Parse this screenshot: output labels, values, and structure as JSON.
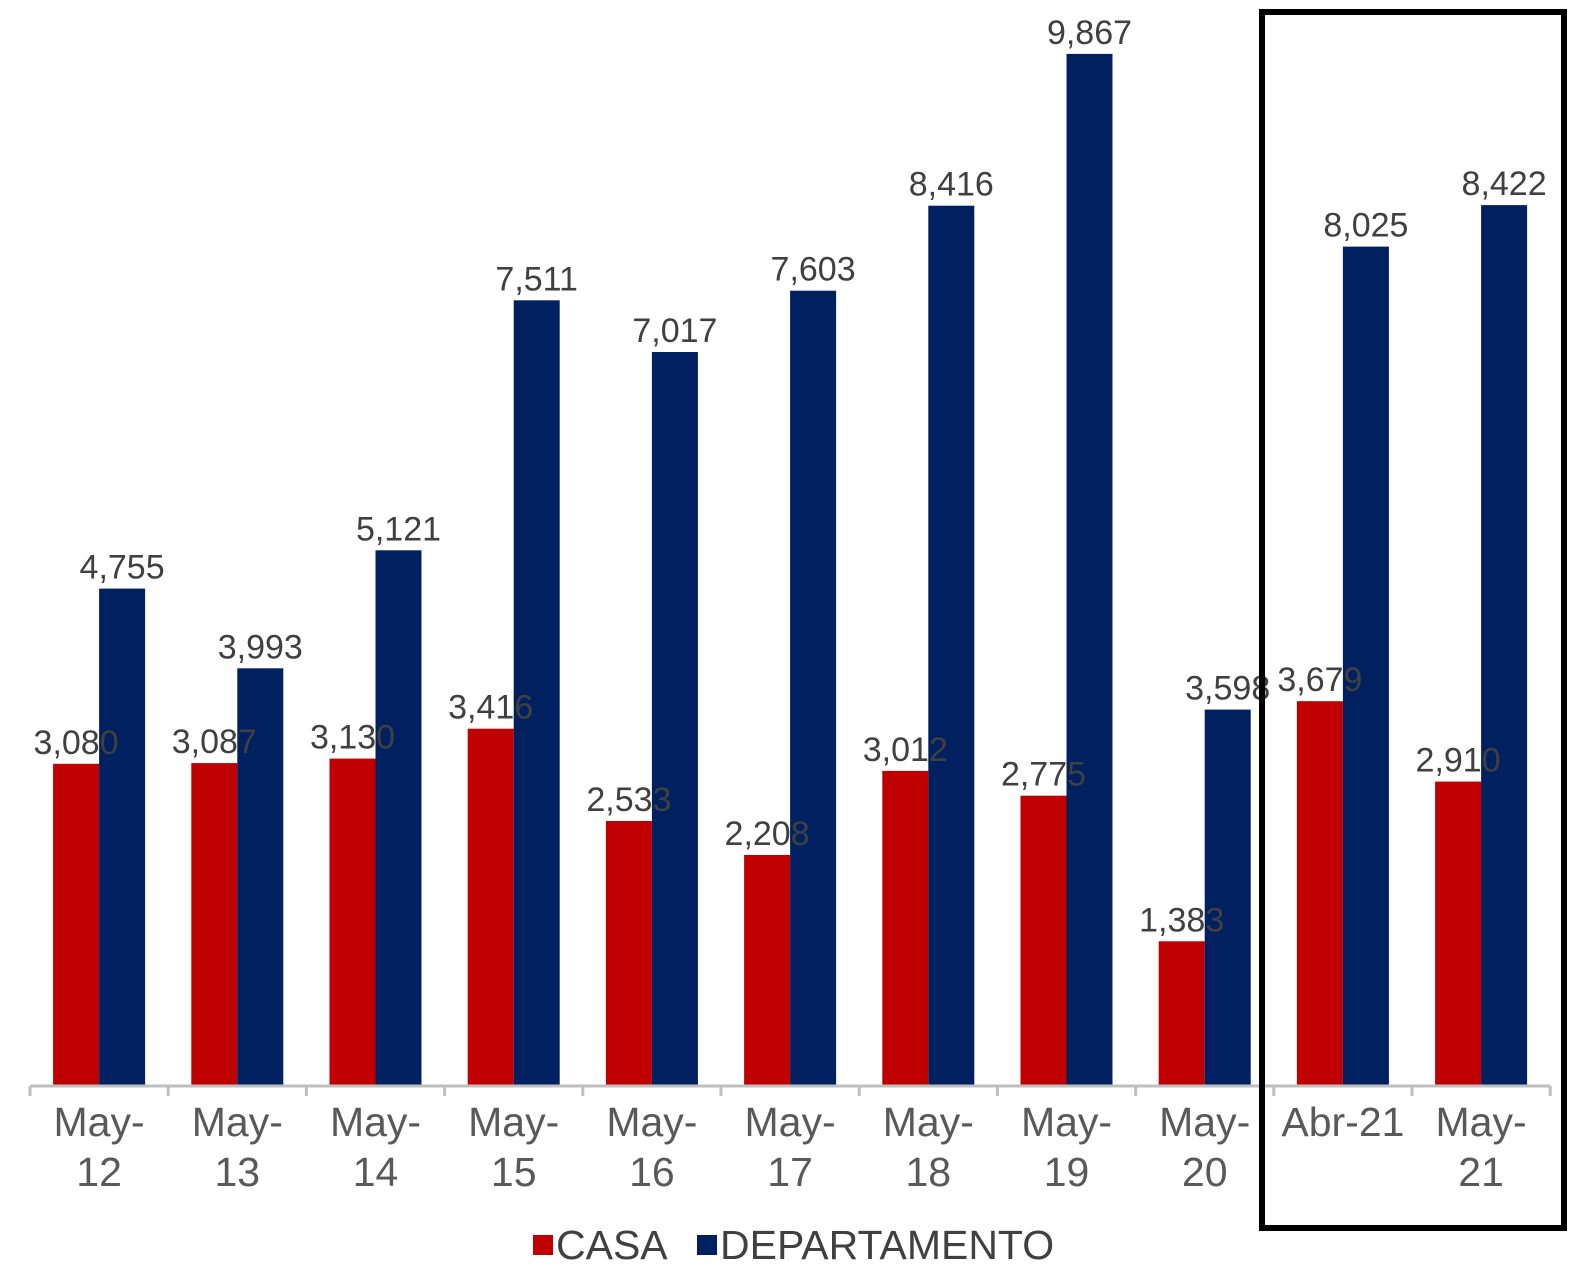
{
  "chart_data": {
    "type": "bar",
    "categories": [
      [
        "May-",
        "12"
      ],
      [
        "May-",
        "13"
      ],
      [
        "May-",
        "14"
      ],
      [
        "May-",
        "15"
      ],
      [
        "May-",
        "16"
      ],
      [
        "May-",
        "17"
      ],
      [
        "May-",
        "18"
      ],
      [
        "May-",
        "19"
      ],
      [
        "May-",
        "20"
      ],
      [
        "Abr-21"
      ],
      [
        "May-",
        "21"
      ]
    ],
    "series": [
      {
        "name": "CASA",
        "color": "#c00000",
        "values": [
          3080,
          3087,
          3130,
          3416,
          2533,
          2208,
          3012,
          2775,
          1383,
          3679,
          2910
        ],
        "labels": [
          "3,080",
          "3,087",
          "3,130",
          "3,416",
          "2,533",
          "2,208",
          "3,012",
          "2,775",
          "1,383",
          "3,679",
          "2,910"
        ]
      },
      {
        "name": "DEPARTAMENTO",
        "color": "#002060",
        "values": [
          4755,
          3993,
          5121,
          7511,
          7017,
          7603,
          8416,
          9867,
          3598,
          8025,
          8422
        ],
        "labels": [
          "4,755",
          "3,993",
          "5,121",
          "7,511",
          "7,017",
          "7,603",
          "8,416",
          "9,867",
          "3,598",
          "8,025",
          "8,422"
        ]
      }
    ],
    "ylim": [
      0,
      10000
    ],
    "legend": "bottom",
    "grid": false,
    "highlight": {
      "categories": [
        "Abr-21",
        "May-21"
      ],
      "style": "black-box"
    }
  }
}
